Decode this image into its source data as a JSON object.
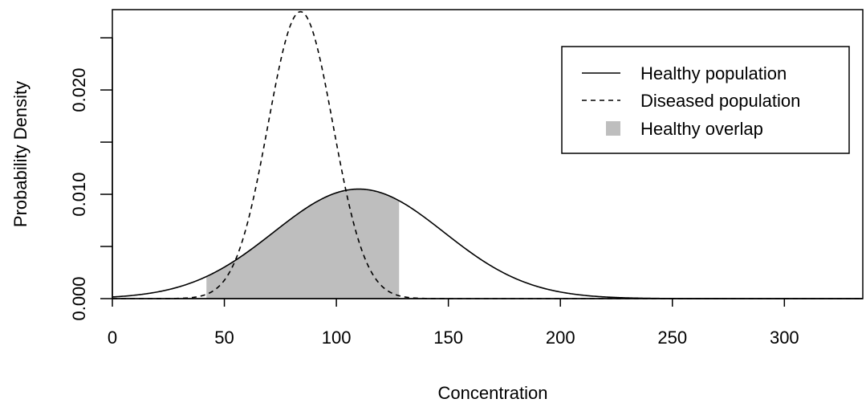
{
  "chart_data": {
    "type": "line",
    "xlabel": "Concentration",
    "ylabel": "Probability Density",
    "xlim": [
      0,
      335
    ],
    "ylim": [
      0,
      0.0277
    ],
    "x_ticks": [
      0,
      50,
      100,
      150,
      200,
      250,
      300
    ],
    "x_tick_labels": [
      "0",
      "50",
      "100",
      "150",
      "200",
      "250",
      "300"
    ],
    "y_ticks": [
      0,
      0.005,
      0.01,
      0.015,
      0.02,
      0.025
    ],
    "y_tick_labels": [
      "0.000",
      "",
      "0.010",
      "",
      "0.020",
      ""
    ],
    "grid": false,
    "legend_position": "top-right",
    "series": [
      {
        "name": "Healthy population",
        "style": "solid",
        "distribution": "normal",
        "mean": 110,
        "sd": 38,
        "peak_density": 0.0105,
        "x": [
          0,
          25,
          50,
          75,
          100,
          110,
          125,
          150,
          175,
          200,
          225,
          250,
          300
        ],
        "y": [
          0.0,
          0.0012,
          0.0029,
          0.0065,
          0.0101,
          0.0105,
          0.0097,
          0.006,
          0.0023,
          0.0006,
          0.0001,
          0.0,
          0.0
        ]
      },
      {
        "name": "Diseased population",
        "style": "dashed",
        "distribution": "normal",
        "mean": 84,
        "sd": 14.5,
        "peak_density": 0.0275,
        "x": [
          35,
          50,
          60,
          70,
          84,
          95,
          105,
          115,
          125,
          135
        ],
        "y": [
          0.0,
          0.0018,
          0.0072,
          0.0173,
          0.0275,
          0.0207,
          0.0097,
          0.0029,
          0.0005,
          0.0
        ]
      }
    ],
    "shaded_region": {
      "name": "Healthy overlap",
      "series": "Healthy population",
      "x_from": 42,
      "x_to": 128,
      "color": "#bebebe"
    }
  }
}
